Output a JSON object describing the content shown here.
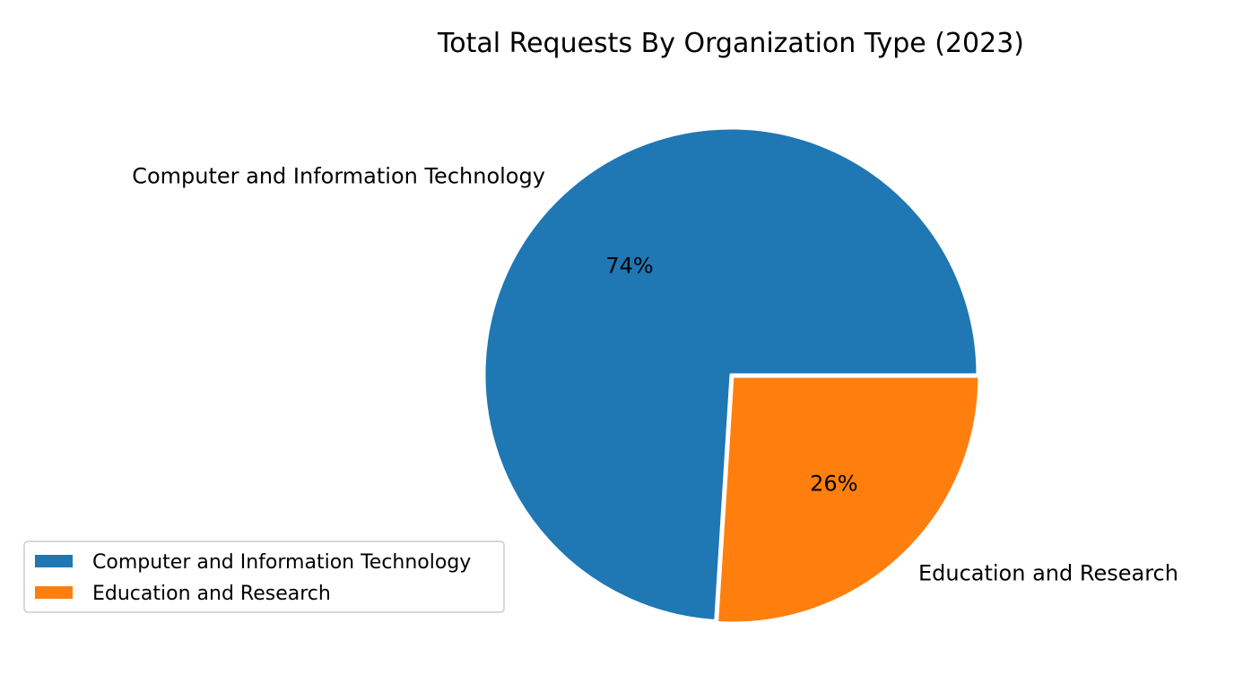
{
  "chart_data": {
    "type": "pie",
    "title": "Total Requests By Organization Type (2023)",
    "slices": [
      {
        "label": "Computer and Information Technology",
        "value": 74,
        "pct_label": "74%",
        "color": "#1f77b4"
      },
      {
        "label": "Education and Research",
        "value": 26,
        "pct_label": "26%",
        "color": "#ff7f0e"
      }
    ],
    "start_angle_deg": 0,
    "direction": "counterclockwise",
    "explode": [
      0,
      0.01
    ],
    "legend": {
      "location": "lower-left",
      "entries": [
        "Computer and Information Technology",
        "Education and Research"
      ]
    }
  }
}
